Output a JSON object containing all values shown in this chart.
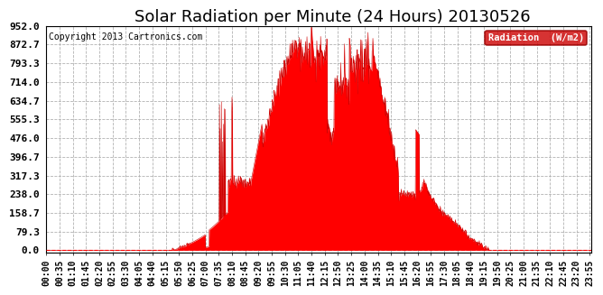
{
  "title": "Solar Radiation per Minute (24 Hours) 20130526",
  "copyright_text": "Copyright 2013 Cartronics.com",
  "legend_label": "Radiation  (W/m2)",
  "y_ticks": [
    0.0,
    79.3,
    158.7,
    238.0,
    317.3,
    396.7,
    476.0,
    555.3,
    634.7,
    714.0,
    793.3,
    872.7,
    952.0
  ],
  "ylim": [
    0.0,
    952.0
  ],
  "fill_color": "#ff0000",
  "line_color": "#cc0000",
  "dashed_line_color": "#ff0000",
  "grid_color": "#aaaaaa",
  "background_color": "#ffffff",
  "legend_bg": "#cc0000",
  "legend_text_color": "#ffffff",
  "title_fontsize": 13,
  "copyright_fontsize": 7,
  "tick_fontsize": 7,
  "ytick_fontsize": 8
}
